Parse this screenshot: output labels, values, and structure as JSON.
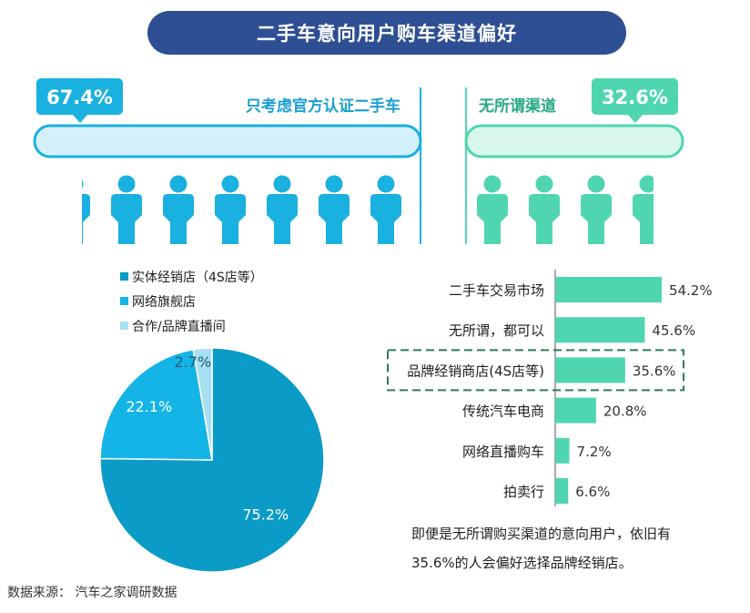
{
  "title": "二手车意向用户购车渠道偏好",
  "split": {
    "left": {
      "percent": "67.4%",
      "value": 67.4,
      "label": "只考虑官方认证二手车"
    },
    "right": {
      "percent": "32.6%",
      "value": 32.6,
      "label": "无所谓渠道"
    }
  },
  "colors": {
    "blue": "#1ab0e0",
    "blue_dark": "#0f93c4",
    "blue_light": "#d4f1fb",
    "green": "#4fd6b0",
    "green_light": "#d9f7ef",
    "navy": "#2e4f93",
    "pie_main": "#0a9bc6",
    "pie_mid": "#14b4e6",
    "pie_small": "#a8dff3"
  },
  "chart_data": [
    {
      "type": "pie",
      "categories": [
        "实体经销店（4S店等）",
        "网络旗舰店",
        "合作/品牌直播间"
      ],
      "values": [
        75.2,
        22.1,
        2.7
      ],
      "labels": [
        "75.2%",
        "22.1%",
        "2.7%"
      ]
    },
    {
      "type": "bar",
      "orientation": "horizontal",
      "categories": [
        "二手车交易市场",
        "无所谓，都可以",
        "品牌经销商店(4S店等)",
        "传统汽车电商",
        "网络直播购车",
        "拍卖行"
      ],
      "values": [
        54.2,
        45.6,
        35.6,
        20.8,
        7.2,
        6.6
      ],
      "labels": [
        "54.2%",
        "45.6%",
        "35.6%",
        "20.8%",
        "7.2%",
        "6.6%"
      ],
      "highlight": "品牌经销商店(4S店等)"
    }
  ],
  "note": "即便是无所谓购买渠道的意向用户，依旧有35.6%的人会偏好选择品牌经销店。",
  "source": "数据来源：  汽车之家调研数据",
  "icons": {
    "person": "person-icon"
  }
}
